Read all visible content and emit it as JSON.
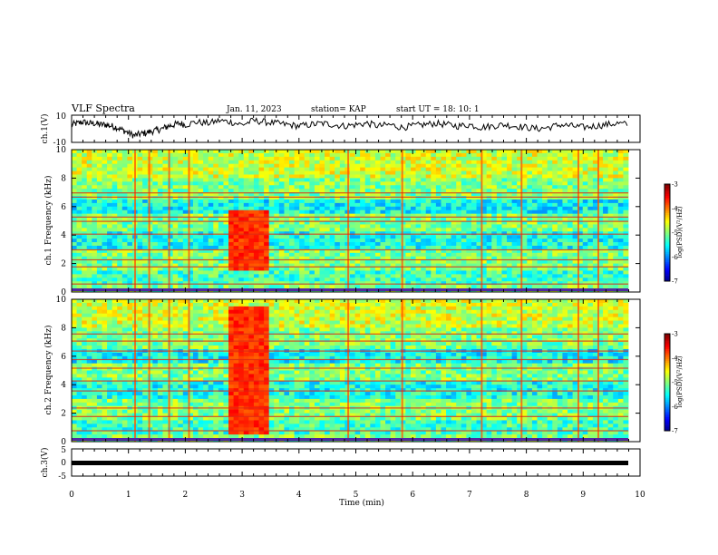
{
  "header": {
    "title": "VLF Spectra",
    "date": "Jan. 11, 2023",
    "station": "station= KAP",
    "start": "start UT =  18: 10: 1"
  },
  "chart_data": [
    {
      "type": "line",
      "panel": "ch1-waveform",
      "ylabel": "ch.1(V)",
      "ylim": [
        -10,
        10
      ],
      "yticks": [
        "10",
        "-10"
      ],
      "xlim": [
        0,
        10
      ],
      "series": [
        {
          "x": [
            0,
            0.1,
            0.2,
            0.3,
            0.4,
            0.5,
            0.6,
            0.7,
            0.8,
            0.9,
            1.0,
            1.1,
            1.2,
            1.3,
            1.4,
            1.5,
            1.6,
            1.7,
            1.8,
            1.9,
            2.0,
            2.2,
            2.4,
            2.6,
            2.8,
            3.0,
            3.2,
            3.4,
            3.6,
            3.8,
            4.0,
            4.2,
            4.4,
            4.6,
            4.8,
            5.0,
            5.2,
            5.4,
            5.6,
            5.8,
            6.0,
            6.2,
            6.4,
            6.6,
            6.8,
            7.0,
            7.2,
            7.4,
            7.6,
            7.8,
            8.0,
            8.2,
            8.4,
            8.6,
            8.8,
            9.0,
            9.2,
            9.4,
            9.6,
            9.8
          ],
          "values": [
            3,
            4,
            5,
            4,
            4,
            3,
            3,
            2,
            1,
            -1,
            -3,
            -5,
            -4,
            -3,
            -2,
            -1,
            0,
            2,
            3,
            4,
            3,
            5,
            4,
            6,
            5,
            3,
            6,
            5,
            4,
            3,
            2,
            3,
            4,
            3,
            2,
            3,
            4,
            2,
            3,
            1,
            2,
            3,
            4,
            3,
            2,
            3,
            1,
            2,
            3,
            2,
            1,
            0,
            1,
            3,
            2,
            1,
            2,
            3,
            4,
            3
          ]
        }
      ]
    },
    {
      "type": "heatmap",
      "panel": "ch1-spectrogram",
      "ylabel": "ch.1 Frequency (kHz)",
      "ylim": [
        0,
        10
      ],
      "yticks": [
        "0",
        "2",
        "4",
        "6",
        "8",
        "10"
      ],
      "xlim": [
        0,
        10
      ],
      "colorbar": {
        "label": "log(PSD)(V²/Hz)",
        "range": [
          -7,
          -3
        ],
        "ticks": [
          "-3",
          "-4",
          "-5",
          "-6",
          "-7"
        ]
      },
      "colorbar_ticks": [
        "-3",
        "-4",
        "-5",
        "-6",
        "-7"
      ],
      "colorbar_label": "log(PSD)(V²/Hz)",
      "bright_band_minutes": [
        2.75,
        3.45
      ],
      "bright_band_freqs_khz": [
        1.5,
        5.8
      ]
    },
    {
      "type": "heatmap",
      "panel": "ch2-spectrogram",
      "ylabel": "ch.2 Frequency (kHz)",
      "ylim": [
        0,
        10
      ],
      "yticks": [
        "0",
        "2",
        "4",
        "6",
        "8",
        "10"
      ],
      "xlim": [
        0,
        10
      ],
      "colorbar_ticks": [
        "-3",
        "-4",
        "-5",
        "-6",
        "-7"
      ],
      "colorbar_label": "log(PSD)(V²/Hz)",
      "bright_band_minutes": [
        2.75,
        3.45
      ],
      "bright_band_freqs_khz": [
        0.5,
        9.5
      ]
    },
    {
      "type": "line",
      "panel": "ch3-waveform",
      "ylabel": "ch.3(V)",
      "ylim": [
        -5,
        5
      ],
      "yticks": [
        "5",
        "0",
        "-5"
      ],
      "xlim": [
        0,
        10
      ],
      "xlabel": "Time (min)",
      "xticks": [
        "0",
        "1",
        "2",
        "3",
        "4",
        "5",
        "6",
        "7",
        "8",
        "9",
        "10"
      ],
      "series": [
        {
          "x": [
            0,
            9.8
          ],
          "values": [
            0,
            0
          ]
        }
      ]
    }
  ]
}
